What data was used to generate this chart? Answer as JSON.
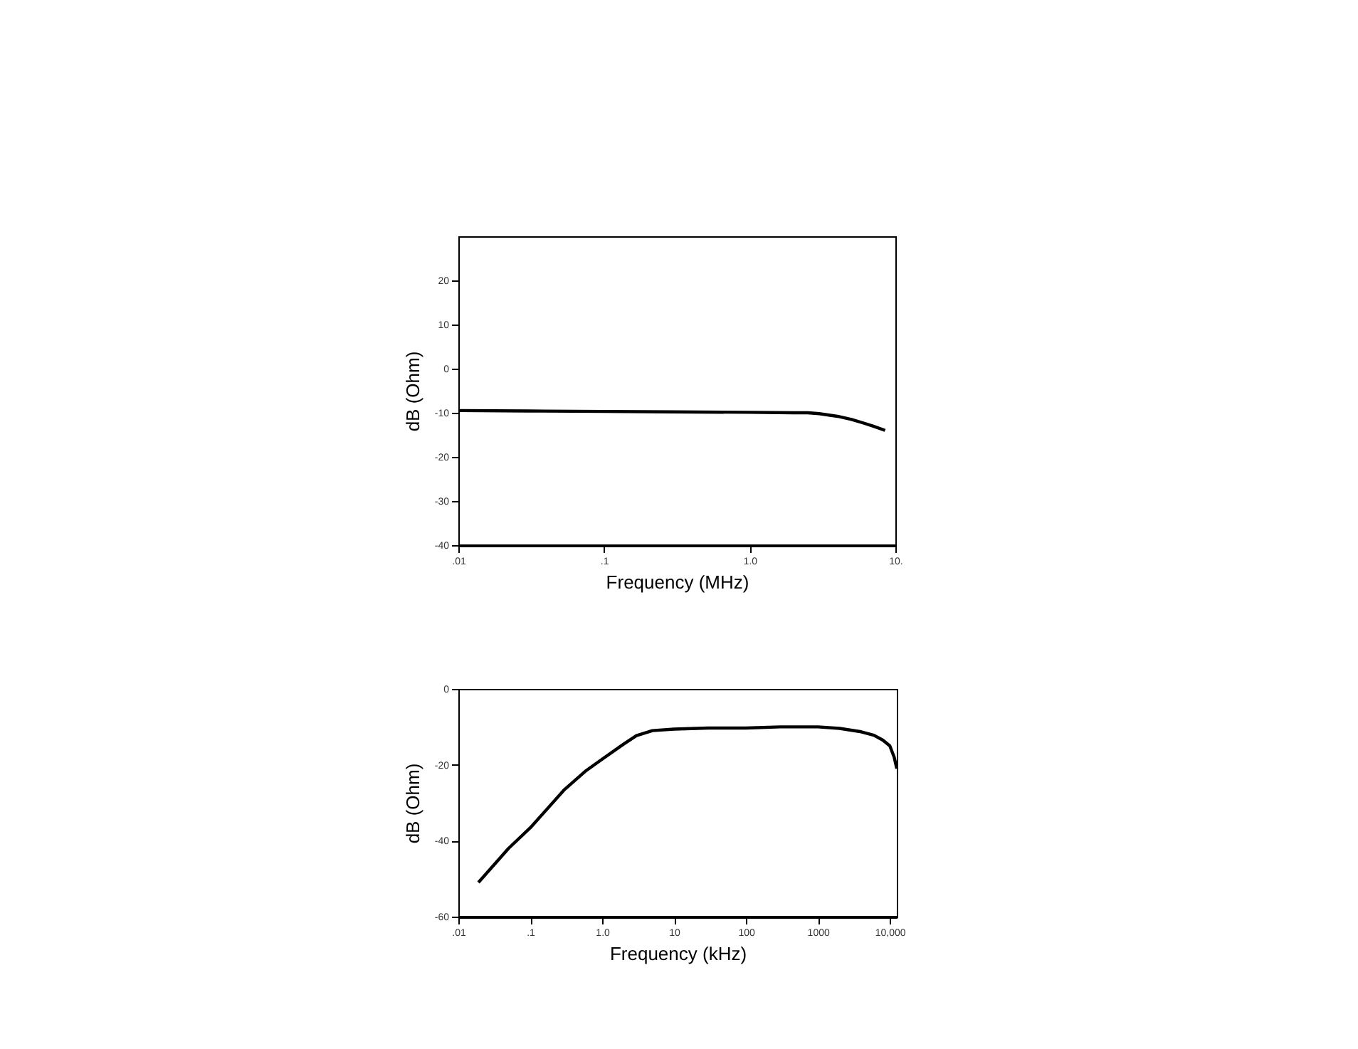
{
  "chart_data": [
    {
      "type": "line",
      "xlabel": "Frequency (MHz)",
      "ylabel": "dB (Ohm)",
      "log": "x",
      "grid": false,
      "marker": "none",
      "line_style": "solid",
      "xlim": [
        0.01,
        10
      ],
      "xticks": [
        {
          "value": 0.01,
          "label": ".01"
        },
        {
          "value": 0.1,
          "label": ".1"
        },
        {
          "value": 1,
          "label": "1.0"
        },
        {
          "value": 10,
          "label": "10."
        }
      ],
      "ylim": [
        -40,
        30
      ],
      "yticks": [
        -40,
        -30,
        -20,
        -10,
        0,
        10,
        20
      ],
      "series": [
        {
          "color": "#000000",
          "x": [
            0.01,
            0.03,
            0.1,
            0.3,
            1,
            2,
            2.5,
            3,
            4,
            5,
            6,
            7,
            8.5
          ],
          "values": [
            -9.5,
            -9.6,
            -9.7,
            -9.8,
            -9.9,
            -10,
            -10,
            -10.2,
            -10.8,
            -11.5,
            -12.3,
            -13,
            -14
          ]
        }
      ]
    },
    {
      "type": "line",
      "xlabel": "Frequency (kHz)",
      "ylabel": "dB (Ohm)",
      "log": "x",
      "grid": false,
      "marker": "none",
      "line_style": "solid",
      "xlim": [
        0.01,
        12500
      ],
      "xticks": [
        {
          "value": 0.01,
          "label": ".01"
        },
        {
          "value": 0.1,
          "label": ".1"
        },
        {
          "value": 1,
          "label": "1.0"
        },
        10,
        100,
        1000,
        {
          "value": 10000,
          "label": "10,000"
        }
      ],
      "ylim": [
        -60,
        0
      ],
      "yticks": [
        -60,
        -40,
        -20,
        0
      ],
      "series": [
        {
          "color": "#000000",
          "x": [
            0.019,
            0.05,
            0.1,
            0.3,
            0.6,
            1,
            2,
            3,
            5,
            10,
            30,
            100,
            300,
            1000,
            2000,
            4000,
            6000,
            8000,
            10000,
            11500,
            12500
          ],
          "values": [
            -51,
            -42,
            -36.6,
            -26.5,
            -21.5,
            -18.5,
            -14.5,
            -12.3,
            -11,
            -10.6,
            -10.3,
            -10.3,
            -10,
            -10,
            -10.4,
            -11.3,
            -12.2,
            -13.5,
            -15,
            -18,
            -21
          ]
        }
      ]
    }
  ]
}
